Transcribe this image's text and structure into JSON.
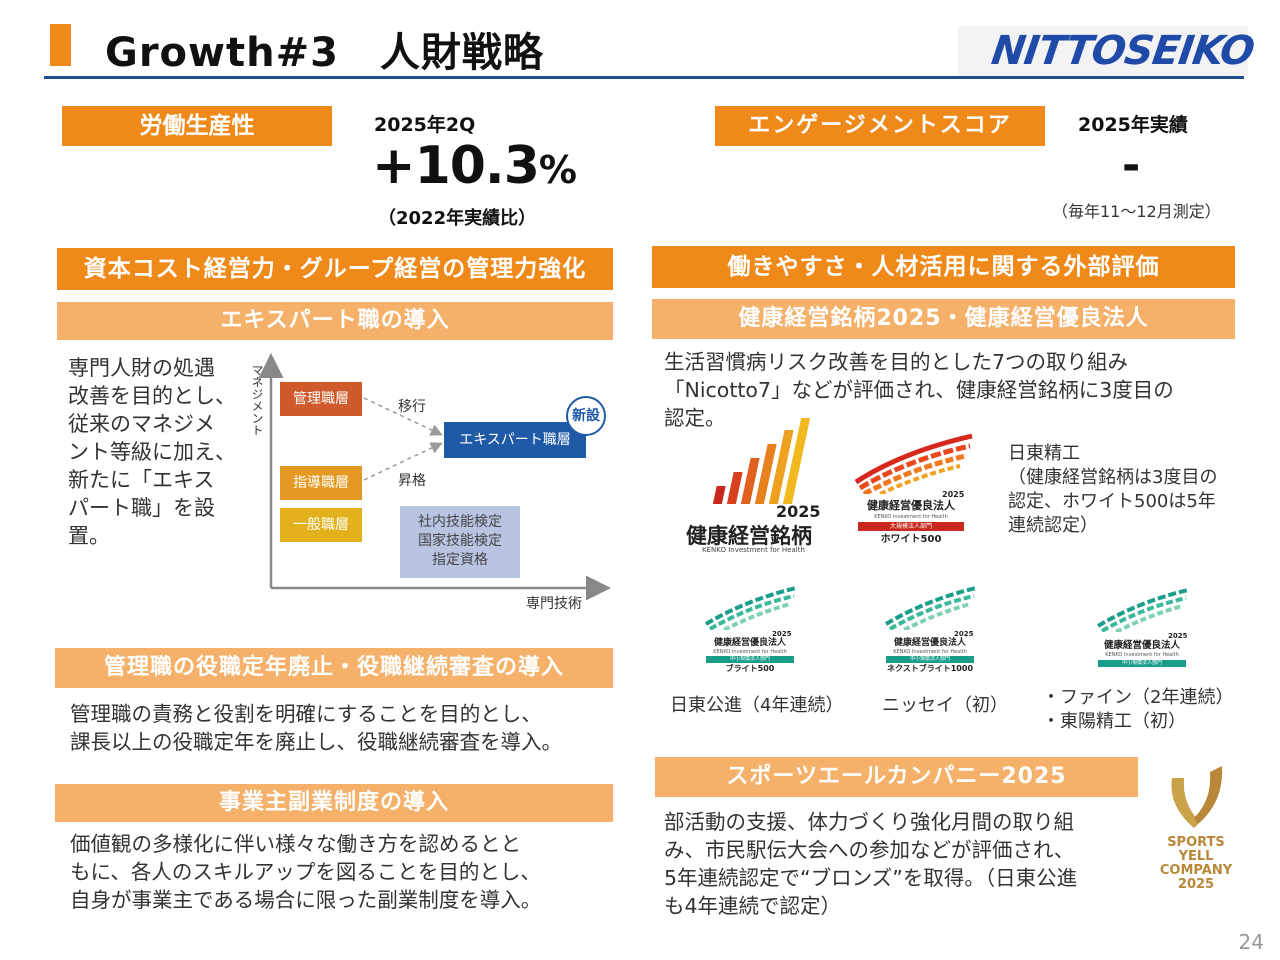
{
  "header": {
    "title": "Growth#3　人財戦略",
    "logo_text": "NITTOSEIKO"
  },
  "productivity": {
    "label": "労働生産性",
    "period": "2025年2Q",
    "value": "+10.3",
    "unit": "%",
    "note": "（2022年実績比）"
  },
  "engagement": {
    "label": "エンゲージメントスコア",
    "period": "2025年実績",
    "value": "-",
    "note": "（毎年11～12月測定）"
  },
  "left": {
    "section_title": "資本コスト経営力・グループ経営の管理力強化",
    "expert": {
      "title": "エキスパート職の導入",
      "body": "専門人財の処遇改善を目的とし、従来のマネジメント等級に加え、新たに「エキスパート職」を設置。",
      "lines": [
        "専門人財の処遇",
        "改善を目的とし、",
        "従来のマネジメ",
        "ント等級に加え、",
        "新たに「エキス",
        "パート職」を設",
        "置。"
      ],
      "diagram": {
        "y_axis": "マネジメント",
        "x_axis": "専門技術",
        "box_manager": "管理職層",
        "box_leader": "指導職層",
        "box_general": "一般職層",
        "box_expert": "エキスパート職層",
        "badge": "新設",
        "arrow_transfer": "移行",
        "arrow_promote": "昇格",
        "qual_lines": [
          "社内技能検定",
          "国家技能検定",
          "指定資格"
        ]
      }
    },
    "retire": {
      "title": "管理職の役職定年廃止・役職継続審査の導入",
      "lines": [
        "管理職の責務と役割を明確にすることを目的とし、",
        "課長以上の役職定年を廃止し、役職継続審査を導入。"
      ]
    },
    "sidejob": {
      "title": "事業主副業制度の導入",
      "lines": [
        "価値観の多様化に伴い様々な働き方を認めるとと",
        "もに、各人のスキルアップを図ることを目的とし、",
        "自身が事業主である場合に限った副業制度を導入。"
      ]
    }
  },
  "right": {
    "section_title": "働きやすさ・人材活用に関する外部評価",
    "health": {
      "title": "健康経営銘柄2025・健康経営優良法人",
      "lines": [
        "生活習慣病リスク改善を目的とした7つの取り組み",
        "「Nicotto7」などが評価され、健康経営銘柄に3度目の",
        "認定。"
      ],
      "logo_meigara": {
        "year": "2025",
        "name": "健康経営銘柄",
        "sub": "KENKO Investment for Health"
      },
      "logo_white": {
        "year": "2025",
        "name": "健康経営優良法人",
        "sub": "KENKO Investment for Health",
        "category": "大規模法人部門",
        "rank": "ホワイト500"
      },
      "company_note_lines": [
        "日東精工",
        "（健康経営銘柄は3度目の",
        "認定、ホワイト500は5年",
        "連続認定）"
      ],
      "logos_small": [
        {
          "year": "2025",
          "name": "健康経営優良法人",
          "sub": "KENKO Investment for Health",
          "category": "中小規模法人部門",
          "rank": "ブライト500",
          "caption": "日東公進（4年連続）"
        },
        {
          "year": "2025",
          "name": "健康経営優良法人",
          "sub": "KENKO Investment for Health",
          "category": "中小規模法人部門",
          "rank": "ネクストブライト1000",
          "caption": "ニッセイ（初）"
        },
        {
          "year": "2025",
          "name": "健康経営優良法人",
          "sub": "KENKO Investment for Health",
          "category": "中小規模法人部門",
          "rank": "",
          "caption_lines": [
            "・ファイン（2年連続）",
            "・東陽精工（初）"
          ]
        }
      ]
    },
    "sports": {
      "title": "スポーツエールカンパニー2025",
      "lines": [
        "部活動の支援、体力づくり強化月間の取り組",
        "み、市民駅伝大会への参加などが評価され、",
        "5年連続認定で“ブロンズ”を取得。（日東公進",
        "も4年連続で認定）"
      ],
      "logo_lines": [
        "SPORTS",
        "YELL",
        "COMPANY",
        "2025"
      ]
    }
  },
  "page_number": "24",
  "colors": {
    "orange": "#ef8a1a",
    "light_orange": "#f5b06a",
    "navy": "#1f4e8c",
    "manager_box": "#cf5a2c",
    "leader_box": "#e49a22",
    "general_box": "#e2b11b",
    "expert_box": "#1f5aa6",
    "qual_box": "#b8c4e2"
  }
}
